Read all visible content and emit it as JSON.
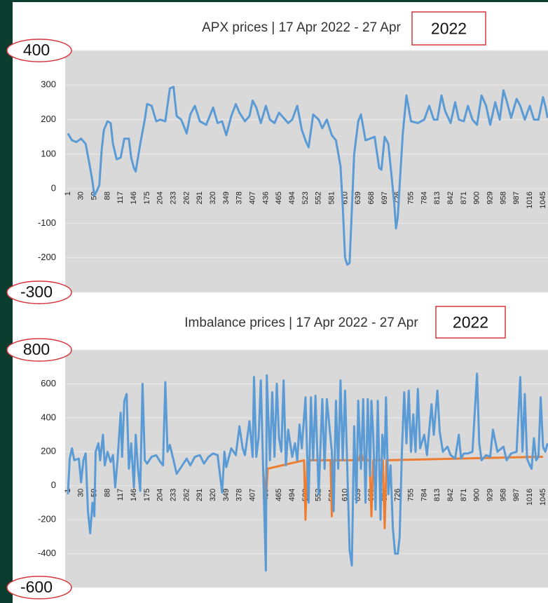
{
  "chart_data": [
    {
      "type": "line",
      "title": "APX prices | 17 Apr 2022 - 27 Apr",
      "title_annotation": "2022",
      "xlim": [
        -5,
        1056
      ],
      "xticks": [
        1,
        30,
        59,
        88,
        117,
        146,
        175,
        204,
        233,
        262,
        291,
        320,
        349,
        378,
        407,
        436,
        465,
        494,
        523,
        552,
        581,
        610,
        639,
        668,
        697,
        726,
        755,
        784,
        813,
        842,
        871,
        900,
        929,
        958,
        987,
        1016,
        1045
      ],
      "ylim": [
        -300,
        400
      ],
      "yticks": [
        -300,
        -200,
        -100,
        0,
        100,
        200,
        300,
        400
      ],
      "grid": true,
      "series": [
        {
          "color": "#5b9bd5",
          "x": [
            1,
            10,
            20,
            30,
            40,
            50,
            55,
            59,
            65,
            70,
            75,
            80,
            88,
            95,
            100,
            108,
            117,
            125,
            135,
            140,
            146,
            150,
            160,
            170,
            175,
            185,
            195,
            204,
            215,
            225,
            233,
            240,
            250,
            262,
            270,
            280,
            291,
            305,
            320,
            330,
            340,
            349,
            360,
            370,
            378,
            390,
            400,
            407,
            415,
            425,
            436,
            445,
            455,
            465,
            475,
            485,
            494,
            505,
            515,
            523,
            530,
            540,
            552,
            560,
            570,
            581,
            590,
            600,
            605,
            610,
            615,
            620,
            625,
            630,
            639,
            645,
            655,
            665,
            675,
            685,
            690,
            697,
            705,
            712,
            718,
            722,
            726,
            730,
            737,
            745,
            755,
            770,
            784,
            795,
            805,
            813,
            822,
            830,
            842,
            852,
            860,
            871,
            880,
            890,
            900,
            910,
            920,
            929,
            940,
            950,
            958,
            965,
            975,
            987,
            995,
            1005,
            1016,
            1025,
            1035,
            1045,
            1050,
            1055
          ],
          "values": [
            160,
            140,
            135,
            145,
            130,
            60,
            20,
            -20,
            -5,
            10,
            110,
            170,
            195,
            190,
            130,
            85,
            90,
            145,
            145,
            90,
            60,
            50,
            130,
            200,
            245,
            240,
            195,
            200,
            195,
            290,
            295,
            210,
            200,
            160,
            215,
            240,
            195,
            185,
            235,
            190,
            195,
            155,
            210,
            245,
            220,
            195,
            210,
            255,
            235,
            190,
            240,
            200,
            190,
            220,
            205,
            190,
            200,
            240,
            170,
            140,
            120,
            215,
            200,
            175,
            200,
            155,
            140,
            65,
            -50,
            -200,
            -220,
            -215,
            -60,
            100,
            195,
            215,
            140,
            145,
            150,
            60,
            55,
            150,
            130,
            40,
            -40,
            -115,
            -80,
            10,
            160,
            270,
            195,
            190,
            200,
            240,
            200,
            200,
            270,
            225,
            190,
            250,
            200,
            195,
            240,
            200,
            185,
            270,
            240,
            185,
            250,
            200,
            285,
            255,
            205,
            260,
            240,
            200,
            240,
            200,
            200,
            265,
            240,
            205
          ]
        }
      ]
    },
    {
      "type": "line",
      "title": "Imbalance prices | 17 Apr 2022 - 27 Apr",
      "title_annotation": "2022",
      "xlim": [
        -5,
        1056
      ],
      "xticks": [
        1,
        30,
        59,
        88,
        117,
        146,
        175,
        204,
        233,
        262,
        291,
        320,
        349,
        378,
        407,
        436,
        465,
        494,
        523,
        552,
        581,
        610,
        639,
        668,
        697,
        726,
        755,
        784,
        813,
        842,
        871,
        900,
        929,
        958,
        987,
        1016,
        1045
      ],
      "ylim": [
        -600,
        800
      ],
      "yticks": [
        -600,
        -400,
        -200,
        0,
        200,
        400,
        600,
        800
      ],
      "grid": true,
      "series": [
        {
          "color": "#ed7d31",
          "x": [
            430,
            436,
            440,
            520,
            523,
            527,
            578,
            581,
            584,
            640,
            645,
            650,
            664,
            668,
            672,
            693,
            697,
            701,
            1035,
            1040,
            1045
          ],
          "values": [
            100,
            -100,
            100,
            150,
            -200,
            150,
            150,
            -180,
            150,
            150,
            200,
            150,
            150,
            -180,
            150,
            150,
            -250,
            150,
            170,
            170,
            170
          ]
        },
        {
          "color": "#5b9bd5",
          "x": [
            1,
            5,
            10,
            15,
            25,
            30,
            35,
            40,
            45,
            50,
            55,
            59,
            62,
            68,
            72,
            78,
            82,
            88,
            95,
            100,
            105,
            110,
            117,
            120,
            125,
            130,
            135,
            140,
            146,
            150,
            155,
            160,
            165,
            170,
            175,
            185,
            195,
            204,
            210,
            215,
            220,
            225,
            233,
            240,
            250,
            262,
            270,
            280,
            291,
            300,
            310,
            320,
            330,
            340,
            345,
            349,
            360,
            370,
            378,
            385,
            390,
            400,
            407,
            410,
            415,
            420,
            425,
            430,
            436,
            438,
            445,
            450,
            455,
            460,
            465,
            470,
            475,
            480,
            485,
            494,
            500,
            505,
            510,
            515,
            523,
            530,
            535,
            540,
            545,
            552,
            560,
            565,
            570,
            581,
            585,
            590,
            595,
            600,
            605,
            610,
            615,
            620,
            625,
            630,
            635,
            639,
            645,
            650,
            655,
            660,
            665,
            668,
            672,
            677,
            682,
            688,
            692,
            697,
            700,
            705,
            710,
            715,
            720,
            726,
            730,
            735,
            740,
            745,
            750,
            755,
            760,
            765,
            770,
            775,
            784,
            790,
            800,
            805,
            813,
            818,
            825,
            835,
            842,
            852,
            860,
            865,
            871,
            880,
            890,
            900,
            905,
            910,
            920,
            929,
            935,
            945,
            958,
            965,
            975,
            987,
            995,
            1000,
            1005,
            1010,
            1016,
            1020,
            1025,
            1030,
            1035,
            1040,
            1045,
            1050,
            1055
          ],
          "values": [
            -50,
            160,
            220,
            150,
            160,
            20,
            150,
            190,
            -150,
            -280,
            -100,
            -180,
            200,
            250,
            150,
            300,
            120,
            200,
            140,
            180,
            -10,
            150,
            430,
            170,
            500,
            540,
            100,
            250,
            -10,
            300,
            100,
            -30,
            600,
            150,
            130,
            170,
            180,
            140,
            120,
            610,
            200,
            240,
            150,
            70,
            110,
            160,
            120,
            170,
            180,
            130,
            170,
            190,
            180,
            -40,
            200,
            110,
            220,
            180,
            350,
            220,
            180,
            380,
            170,
            640,
            170,
            280,
            620,
            100,
            -500,
            650,
            150,
            550,
            170,
            600,
            280,
            200,
            620,
            120,
            330,
            170,
            250,
            150,
            360,
            220,
            520,
            -100,
            520,
            150,
            530,
            -50,
            510,
            100,
            510,
            200,
            -150,
            500,
            100,
            620,
            150,
            560,
            100,
            -380,
            -470,
            350,
            -100,
            500,
            100,
            510,
            -100,
            510,
            60,
            500,
            300,
            -140,
            500,
            -200,
            300,
            160,
            520,
            -50,
            120,
            -250,
            -400,
            -400,
            -300,
            200,
            550,
            250,
            560,
            200,
            420,
            200,
            570,
            220,
            300,
            180,
            480,
            300,
            560,
            320,
            200,
            230,
            180,
            160,
            300,
            160,
            190,
            190,
            200,
            660,
            250,
            150,
            180,
            170,
            330,
            200,
            230,
            150,
            190,
            200,
            640,
            200,
            540,
            160,
            120,
            100,
            280,
            150,
            170,
            520,
            230,
            200,
            250
          ]
        }
      ]
    }
  ]
}
